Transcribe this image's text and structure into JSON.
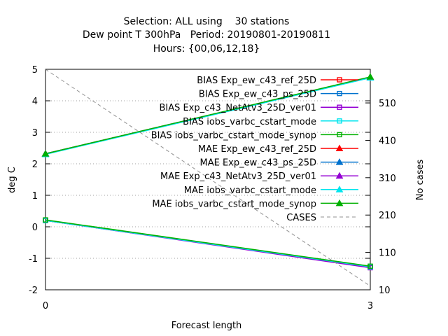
{
  "chart_data": {
    "type": "line",
    "title": [
      "Selection: ALL using    30 stations",
      "Dew point T 300hPa   Period: 20190801-20190811",
      "Hours: {00,06,12,18}"
    ],
    "xlabel": "Forecast length",
    "ylabel": "deg C",
    "y2label": "No cases",
    "x": [
      0,
      3
    ],
    "xticks": [
      "0",
      "3"
    ],
    "xlim": [
      0,
      3
    ],
    "ylim": [
      -2,
      5
    ],
    "yticks": [
      "5",
      "4",
      "3",
      "2",
      "1",
      "0",
      "-1",
      "-2"
    ],
    "y2lim": [
      10,
      600
    ],
    "y2ticks": [
      "510",
      "410",
      "310",
      "210",
      "110",
      "10"
    ],
    "legend_position": "top-right",
    "grid": true,
    "series": [
      {
        "name": "BIAS Exp_ew_c43_ref_25D",
        "values": [
          0.2,
          -1.27
        ],
        "color": "#ff0000",
        "marker": "open-square",
        "axis": "y"
      },
      {
        "name": "BIAS Exp_ew_c43_ps_25D",
        "values": [
          0.2,
          -1.27
        ],
        "color": "#0072ce",
        "marker": "open-square",
        "axis": "y"
      },
      {
        "name": "BIAS Exp_c43_NetAtv3_25D_ver01",
        "values": [
          0.2,
          -1.3
        ],
        "color": "#9400d3",
        "marker": "open-square",
        "axis": "y"
      },
      {
        "name": "BIAS iobs_varbc_cstart_mode",
        "values": [
          0.2,
          -1.27
        ],
        "color": "#00e5ee",
        "marker": "open-square",
        "axis": "y"
      },
      {
        "name": "BIAS iobs_varbc_cstart_mode_synop",
        "values": [
          0.22,
          -1.25
        ],
        "color": "#00b000",
        "marker": "open-square",
        "axis": "y"
      },
      {
        "name": "MAE Exp_ew_c43_ref_25D",
        "values": [
          2.32,
          4.75
        ],
        "color": "#ff0000",
        "marker": "filled-triangle",
        "axis": "y"
      },
      {
        "name": "MAE Exp_ew_c43_ps_25D",
        "values": [
          2.32,
          4.75
        ],
        "color": "#0072ce",
        "marker": "filled-triangle",
        "axis": "y"
      },
      {
        "name": "MAE Exp_c43_NetAtv3_25D_ver01",
        "values": [
          2.32,
          4.75
        ],
        "color": "#9400d3",
        "marker": "filled-triangle",
        "axis": "y"
      },
      {
        "name": "MAE iobs_varbc_cstart_mode",
        "values": [
          2.3,
          4.73
        ],
        "color": "#00e5ee",
        "marker": "filled-triangle",
        "axis": "y"
      },
      {
        "name": "MAE iobs_varbc_cstart_mode_synop",
        "values": [
          2.32,
          4.76
        ],
        "color": "#00b000",
        "marker": "filled-triangle",
        "axis": "y"
      },
      {
        "name": "CASES",
        "values": [
          600,
          20
        ],
        "color": "#909090",
        "dashed": true,
        "axis": "y2"
      }
    ]
  }
}
